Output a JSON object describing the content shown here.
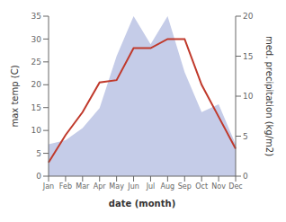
{
  "chart_data": {
    "type": "line",
    "categories": [
      "Jan",
      "Feb",
      "Mar",
      "Apr",
      "May",
      "Jun",
      "Jul",
      "Aug",
      "Sep",
      "Oct",
      "Nov",
      "Dec"
    ],
    "series": [
      {
        "type": "area",
        "axis": "y2",
        "color": "#c5cce8",
        "values": [
          4.0,
          4.5,
          6.0,
          8.5,
          15.0,
          20.0,
          16.5,
          20.0,
          13.0,
          8.0,
          9.0,
          4.0
        ]
      },
      {
        "type": "line",
        "color": "#c0392b",
        "values": [
          3.0,
          9.0,
          14.0,
          20.5,
          21.0,
          28.0,
          28.0,
          30.0,
          30.0,
          20.0,
          13.0,
          6.0
        ]
      }
    ],
    "xlabel": "date (month)",
    "ylabel": "max temp (C)",
    "y2label": "med. precipitation (kg/m2)",
    "ylim": [
      0,
      35
    ],
    "yticks": [
      0,
      5,
      10,
      15,
      20,
      25,
      30,
      35
    ],
    "y2lim": [
      0,
      20
    ],
    "y2ticks": [
      0,
      5,
      10,
      15,
      20
    ],
    "grid": false
  }
}
